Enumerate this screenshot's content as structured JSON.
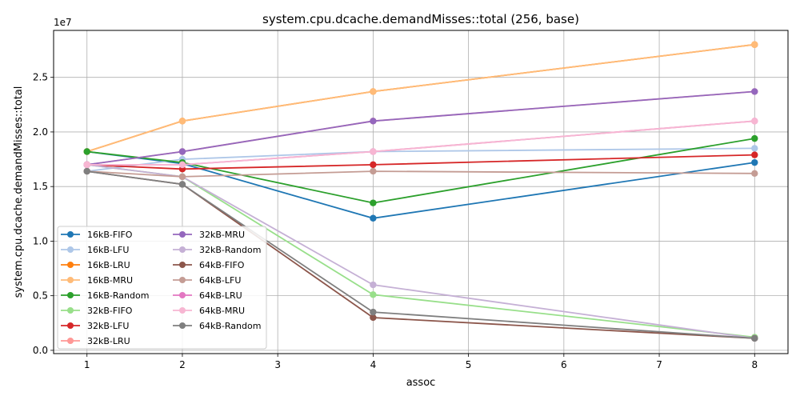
{
  "chart_data": {
    "type": "line",
    "title": "system.cpu.dcache.demandMisses::total (256, base)",
    "xlabel": "assoc",
    "ylabel": "system.cpu.dcache.demandMisses::total",
    "y_offset_label": "1e7",
    "x": [
      1,
      2,
      4,
      8
    ],
    "x_ticks": [
      1,
      2,
      3,
      4,
      5,
      6,
      7,
      8
    ],
    "x_tick_labels": [
      "1",
      "2",
      "3",
      "4",
      "5",
      "6",
      "7",
      "8"
    ],
    "xlim": [
      0.65,
      8.35
    ],
    "y_ticks": [
      0,
      5000000,
      10000000,
      15000000,
      20000000,
      25000000
    ],
    "y_tick_labels": [
      "0.0",
      "0.5",
      "1.0",
      "1.5",
      "2.0",
      "2.5"
    ],
    "ylim": [
      -300000,
      29300000
    ],
    "grid": true,
    "legend_position": "lower-left",
    "series": [
      {
        "name": "16kB-FIFO",
        "color": "#1f77b4",
        "values": [
          18200000,
          17100000,
          12100000,
          17200000
        ]
      },
      {
        "name": "16kB-LFU",
        "color": "#aec7e8",
        "values": [
          16400000,
          17500000,
          18200000,
          18500000
        ]
      },
      {
        "name": "16kB-LRU",
        "color": "#ff7f0e",
        "values": [
          18200000,
          21000000,
          23700000,
          28000000
        ]
      },
      {
        "name": "16kB-MRU",
        "color": "#ffbb78",
        "values": [
          18200000,
          21000000,
          23700000,
          28000000
        ]
      },
      {
        "name": "16kB-Random",
        "color": "#2ca02c",
        "values": [
          18200000,
          17200000,
          13500000,
          19400000
        ]
      },
      {
        "name": "32kB-FIFO",
        "color": "#98df8a",
        "values": [
          17000000,
          15900000,
          5100000,
          1200000
        ]
      },
      {
        "name": "32kB-LFU",
        "color": "#d62728",
        "values": [
          17000000,
          16600000,
          17000000,
          17900000
        ]
      },
      {
        "name": "32kB-LRU",
        "color": "#ff9896",
        "values": [
          17000000,
          18200000,
          21000000,
          23700000
        ]
      },
      {
        "name": "32kB-MRU",
        "color": "#9467bd",
        "values": [
          17000000,
          18200000,
          21000000,
          23700000
        ]
      },
      {
        "name": "32kB-Random",
        "color": "#c5b0d5",
        "values": [
          17000000,
          15900000,
          6000000,
          1100000
        ]
      },
      {
        "name": "64kB-FIFO",
        "color": "#8c564b",
        "values": [
          16400000,
          15200000,
          3000000,
          1100000
        ]
      },
      {
        "name": "64kB-LFU",
        "color": "#c49c94",
        "values": [
          16400000,
          15900000,
          16400000,
          16200000
        ]
      },
      {
        "name": "64kB-LRU",
        "color": "#e377c2",
        "values": [
          17000000,
          17000000,
          18200000,
          21000000
        ]
      },
      {
        "name": "64kB-MRU",
        "color": "#f7b6d2",
        "values": [
          17000000,
          17000000,
          18200000,
          21000000
        ]
      },
      {
        "name": "64kB-Random",
        "color": "#7f7f7f",
        "values": [
          16400000,
          15200000,
          3500000,
          1100000
        ]
      }
    ]
  }
}
